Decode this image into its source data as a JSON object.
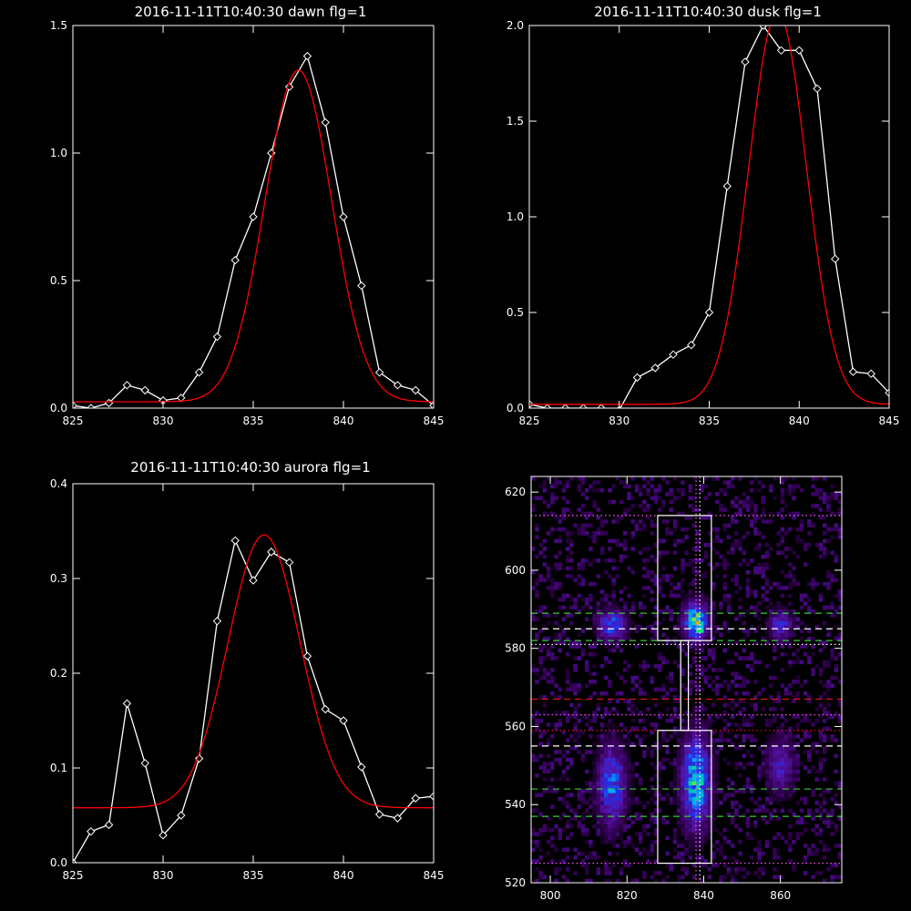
{
  "chart_data": [
    {
      "type": "line",
      "title": "2016-11-11T10:40:30 dawn flg=1",
      "xlim": [
        825,
        845
      ],
      "ylim": [
        0,
        1.5
      ],
      "xticks": [
        "825",
        "830",
        "835",
        "840",
        "845"
      ],
      "yticks": [
        "0.0",
        "0.5",
        "1.0",
        "1.5"
      ],
      "series": [
        {
          "color": "#ffffff",
          "marker": "diamond",
          "x": [
            825,
            826,
            827,
            828,
            829,
            830,
            831,
            832,
            833,
            834,
            835,
            836,
            837,
            838,
            839,
            840,
            841,
            842,
            843,
            844,
            845
          ],
          "y": [
            0.01,
            0.0,
            0.02,
            0.09,
            0.07,
            0.03,
            0.04,
            0.14,
            0.28,
            0.58,
            0.75,
            1.0,
            1.26,
            1.38,
            1.12,
            0.75,
            0.48,
            0.14,
            0.09,
            0.07,
            0.01
          ]
        },
        {
          "color": "#ff0000",
          "marker": "none",
          "fit": "gaussian",
          "amplitude": 1.3,
          "center": 837.5,
          "sigma": 1.85,
          "offset": 0.025
        }
      ]
    },
    {
      "type": "line",
      "title": "2016-11-11T10:40:30 dusk flg=1",
      "xlim": [
        825,
        845
      ],
      "ylim": [
        0,
        2.0
      ],
      "xticks": [
        "825",
        "830",
        "835",
        "840",
        "845"
      ],
      "yticks": [
        "0.0",
        "0.5",
        "1.0",
        "1.5",
        "2.0"
      ],
      "series": [
        {
          "color": "#ffffff",
          "marker": "diamond",
          "x": [
            825,
            826,
            827,
            828,
            829,
            830,
            831,
            832,
            833,
            834,
            835,
            836,
            837,
            838,
            839,
            840,
            841,
            842,
            843,
            844,
            845
          ],
          "y": [
            0.02,
            0.0,
            0.0,
            0.0,
            0.0,
            -0.01,
            0.16,
            0.21,
            0.28,
            0.33,
            0.5,
            1.16,
            1.81,
            2.0,
            1.87,
            1.87,
            1.67,
            0.78,
            0.19,
            0.18,
            0.08
          ]
        },
        {
          "color": "#ff0000",
          "marker": "none",
          "fit": "gaussian",
          "amplitude": 2.05,
          "center": 838.8,
          "sigma": 1.6,
          "offset": 0.02
        }
      ]
    },
    {
      "type": "line",
      "title": "2016-11-11T10:40:30 aurora flg=1",
      "xlim": [
        825,
        845
      ],
      "ylim": [
        0,
        0.4
      ],
      "xticks": [
        "825",
        "830",
        "835",
        "840",
        "845"
      ],
      "yticks": [
        "0.0",
        "0.1",
        "0.2",
        "0.3",
        "0.4"
      ],
      "series": [
        {
          "color": "#ffffff",
          "marker": "diamond",
          "x": [
            825,
            826,
            827,
            828,
            829,
            830,
            831,
            832,
            833,
            834,
            835,
            836,
            837,
            838,
            839,
            840,
            841,
            842,
            843,
            844,
            845
          ],
          "y": [
            0.0,
            0.033,
            0.04,
            0.168,
            0.105,
            0.029,
            0.05,
            0.11,
            0.255,
            0.34,
            0.298,
            0.328,
            0.317,
            0.218,
            0.162,
            0.15,
            0.101,
            0.051,
            0.047,
            0.068,
            0.07
          ]
        },
        {
          "color": "#ff0000",
          "marker": "none",
          "fit": "gaussian",
          "amplitude": 0.288,
          "center": 835.6,
          "sigma": 2.0,
          "offset": 0.058
        }
      ]
    },
    {
      "type": "heatmap",
      "xlim": [
        795,
        876
      ],
      "ylim": [
        520,
        624
      ],
      "xticks": [
        "800",
        "820",
        "840",
        "860"
      ],
      "yticks": [
        "520",
        "540",
        "560",
        "580",
        "600",
        "620"
      ],
      "blobs": [
        {
          "x": 816,
          "y": 586,
          "sx": 2.5,
          "sy": 2.5,
          "v": 0.55
        },
        {
          "x": 838,
          "y": 587,
          "sx": 2.2,
          "sy": 3.2,
          "v": 0.85
        },
        {
          "x": 839,
          "y": 585,
          "sx": 0.8,
          "sy": 0.8,
          "v": 1.0
        },
        {
          "x": 860,
          "y": 586,
          "sx": 2.0,
          "sy": 2.5,
          "v": 0.45
        },
        {
          "x": 816,
          "y": 545,
          "sx": 2.5,
          "sy": 7.0,
          "v": 0.55
        },
        {
          "x": 838,
          "y": 546,
          "sx": 2.5,
          "sy": 8.0,
          "v": 0.75
        },
        {
          "x": 860,
          "y": 550,
          "sx": 2.5,
          "sy": 5.0,
          "v": 0.35
        }
      ],
      "overlays": {
        "boxes": [
          {
            "x": [
              828,
              842
            ],
            "y": [
              582,
              614
            ],
            "color": "#ffffff"
          },
          {
            "x": [
              828,
              842
            ],
            "y": [
              525,
              559
            ],
            "color": "#ffffff"
          },
          {
            "x": [
              834,
              836
            ],
            "y": [
              559,
              582
            ],
            "color": "#ffffff"
          }
        ],
        "hlines": [
          {
            "y": 614,
            "style": "dotted",
            "color": "#ff55ff"
          },
          {
            "y": 589,
            "style": "dashed",
            "color": "#33cc33"
          },
          {
            "y": 585,
            "style": "dashed",
            "color": "#ffffff"
          },
          {
            "y": 582,
            "style": "dashed",
            "color": "#33cc33"
          },
          {
            "y": 581,
            "style": "dotted",
            "color": "#ffffff"
          },
          {
            "y": 567,
            "style": "dashed",
            "color": "#ee1111"
          },
          {
            "y": 563,
            "style": "dotted",
            "color": "#ff55ff"
          },
          {
            "y": 559,
            "style": "dotted",
            "color": "#ee1111"
          },
          {
            "y": 555,
            "style": "dashed",
            "color": "#ffffff"
          },
          {
            "y": 544,
            "style": "dashed",
            "color": "#33cc33"
          },
          {
            "y": 537,
            "style": "dashed",
            "color": "#33cc33"
          },
          {
            "y": 525,
            "style": "dotted",
            "color": "#ff55ff"
          }
        ],
        "vlines": [
          {
            "x": 838,
            "style": "dotted",
            "color": "#ff55ff"
          },
          {
            "x": 839,
            "style": "dotted",
            "color": "#ffffff"
          }
        ]
      }
    }
  ]
}
